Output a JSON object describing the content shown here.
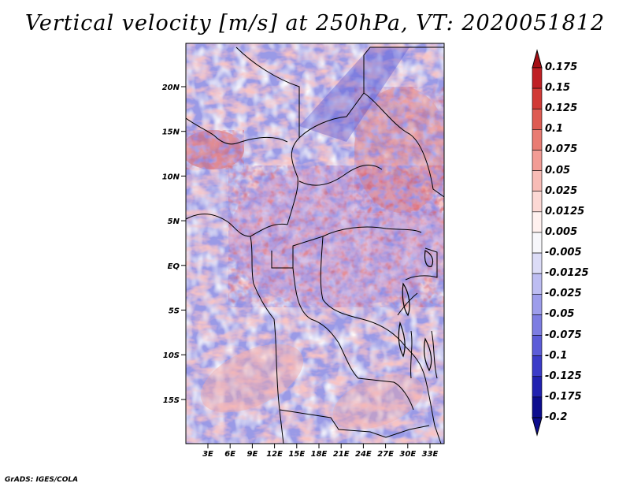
{
  "title": "Vertical velocity [m/s] at 250hPa, VT: 2020051812",
  "credit": "GrADS: IGES/COLA",
  "map": {
    "lat_labels": [
      "20N",
      "15N",
      "10N",
      "5N",
      "EQ",
      "5S",
      "10S",
      "15S"
    ],
    "lon_labels": [
      "3E",
      "6E",
      "9E",
      "12E",
      "15E",
      "18E",
      "21E",
      "24E",
      "27E",
      "30E",
      "33E"
    ]
  },
  "colorbar": {
    "labels": [
      "0.175",
      "0.15",
      "0.125",
      "0.1",
      "0.075",
      "0.05",
      "0.025",
      "0.0125",
      "0.005",
      "-0.005",
      "-0.0125",
      "-0.025",
      "-0.05",
      "-0.075",
      "-0.1",
      "-0.125",
      "-0.175",
      "-0.2"
    ],
    "colors": [
      "#a50f15",
      "#bf1f24",
      "#d13a36",
      "#de5b52",
      "#e97c73",
      "#f29c95",
      "#f8bcb6",
      "#fcd8d4",
      "#fff1ef",
      "#f7f7fb",
      "#dcdcf7",
      "#bdbdf2",
      "#9d9deb",
      "#7d7de2",
      "#5c5cd8",
      "#3b3bc8",
      "#2121b0",
      "#0d0d8e"
    ]
  }
}
